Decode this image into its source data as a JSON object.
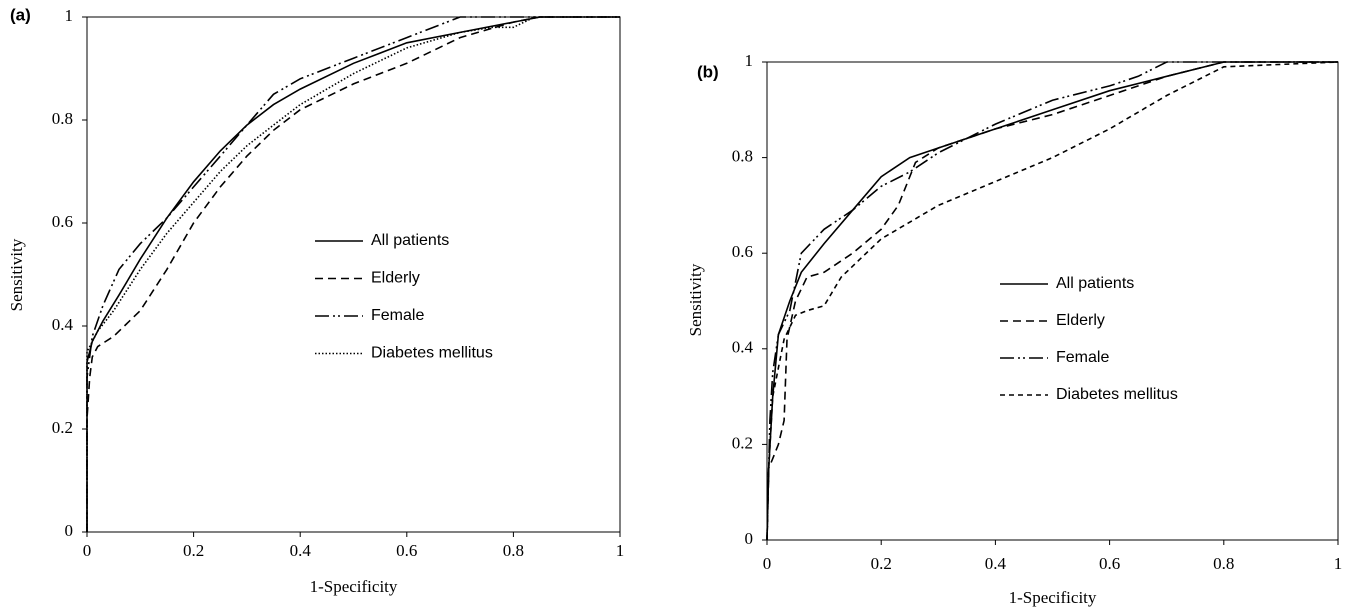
{
  "chart_data": [
    {
      "type": "line",
      "panel_label": "(a)",
      "x_label": "1-Specificity",
      "y_label": "Sensitivity",
      "xlim": [
        0,
        1
      ],
      "ylim": [
        0,
        1
      ],
      "xticks": [
        0,
        0.2,
        0.4,
        0.6,
        0.8,
        1
      ],
      "yticks": [
        0,
        0.2,
        0.4,
        0.6,
        0.8,
        1
      ],
      "legend": "center",
      "series": [
        {
          "name": "All patients",
          "color": "#000000",
          "linestyle": "solid",
          "x": [
            0,
            0,
            0.01,
            0.03,
            0.06,
            0.1,
            0.15,
            0.2,
            0.25,
            0.3,
            0.35,
            0.4,
            0.5,
            0.6,
            0.7,
            0.8,
            0.85,
            1
          ],
          "values": [
            0,
            0.33,
            0.37,
            0.41,
            0.46,
            0.53,
            0.61,
            0.68,
            0.74,
            0.79,
            0.83,
            0.86,
            0.91,
            0.95,
            0.97,
            0.99,
            1,
            1
          ]
        },
        {
          "name": "Elderly",
          "color": "#000000",
          "linestyle": "dashed",
          "x": [
            0,
            0,
            0.005,
            0.01,
            0.02,
            0.05,
            0.1,
            0.15,
            0.2,
            0.25,
            0.3,
            0.35,
            0.4,
            0.5,
            0.6,
            0.7,
            0.8,
            0.85,
            1
          ],
          "values": [
            0,
            0.22,
            0.3,
            0.34,
            0.36,
            0.38,
            0.43,
            0.51,
            0.6,
            0.67,
            0.73,
            0.78,
            0.82,
            0.87,
            0.91,
            0.96,
            0.99,
            1,
            1
          ]
        },
        {
          "name": "Female",
          "color": "#000000",
          "linestyle": "dashdotdot",
          "x": [
            0,
            0,
            0.01,
            0.03,
            0.06,
            0.1,
            0.15,
            0.2,
            0.25,
            0.3,
            0.35,
            0.4,
            0.5,
            0.6,
            0.7,
            1
          ],
          "values": [
            0,
            0.3,
            0.38,
            0.44,
            0.51,
            0.56,
            0.61,
            0.67,
            0.73,
            0.79,
            0.85,
            0.88,
            0.92,
            0.96,
            1,
            1
          ]
        },
        {
          "name": "Diabetes mellitus",
          "color": "#000000",
          "linestyle": "dotted",
          "x": [
            0,
            0,
            0.02,
            0.05,
            0.1,
            0.15,
            0.2,
            0.25,
            0.3,
            0.35,
            0.4,
            0.5,
            0.6,
            0.7,
            0.76,
            0.8,
            0.84,
            1
          ],
          "values": [
            0,
            0.35,
            0.39,
            0.43,
            0.51,
            0.58,
            0.64,
            0.7,
            0.75,
            0.79,
            0.83,
            0.89,
            0.94,
            0.97,
            0.98,
            0.98,
            1,
            1
          ]
        }
      ]
    },
    {
      "type": "line",
      "panel_label": "(b)",
      "x_label": "1-Specificity",
      "y_label": "Sensitivity",
      "xlim": [
        0,
        1
      ],
      "ylim": [
        0,
        1
      ],
      "xticks": [
        0,
        0.2,
        0.4,
        0.6,
        0.8,
        1
      ],
      "yticks": [
        0,
        0.2,
        0.4,
        0.6,
        0.8,
        1
      ],
      "legend": "center",
      "series": [
        {
          "name": "All patients",
          "color": "#000000",
          "linestyle": "solid",
          "x": [
            0,
            0.003,
            0.01,
            0.02,
            0.04,
            0.06,
            0.1,
            0.15,
            0.2,
            0.25,
            0.3,
            0.4,
            0.5,
            0.6,
            0.7,
            0.8,
            1
          ],
          "values": [
            0,
            0.15,
            0.3,
            0.43,
            0.5,
            0.56,
            0.62,
            0.69,
            0.76,
            0.8,
            0.82,
            0.86,
            0.9,
            0.94,
            0.97,
            1,
            1
          ]
        },
        {
          "name": "Elderly",
          "color": "#000000",
          "linestyle": "dashed",
          "x": [
            0,
            0.003,
            0.01,
            0.02,
            0.03,
            0.035,
            0.05,
            0.07,
            0.1,
            0.15,
            0.2,
            0.23,
            0.26,
            0.3,
            0.4,
            0.5,
            0.6,
            0.7,
            0.8,
            1
          ],
          "values": [
            0,
            0.15,
            0.17,
            0.2,
            0.25,
            0.42,
            0.5,
            0.55,
            0.56,
            0.6,
            0.65,
            0.7,
            0.79,
            0.82,
            0.86,
            0.89,
            0.93,
            0.97,
            1,
            1
          ]
        },
        {
          "name": "Female",
          "color": "#000000",
          "linestyle": "dashdotdot",
          "x": [
            0,
            0.005,
            0.01,
            0.02,
            0.04,
            0.06,
            0.1,
            0.15,
            0.2,
            0.25,
            0.3,
            0.4,
            0.5,
            0.6,
            0.65,
            0.7,
            1
          ],
          "values": [
            0,
            0.25,
            0.35,
            0.43,
            0.48,
            0.6,
            0.65,
            0.69,
            0.74,
            0.77,
            0.81,
            0.87,
            0.92,
            0.95,
            0.97,
            1,
            1
          ]
        },
        {
          "name": "Diabetes mellitus",
          "color": "#000000",
          "linestyle": "shortdash",
          "x": [
            0,
            0.003,
            0.01,
            0.03,
            0.05,
            0.07,
            0.1,
            0.13,
            0.2,
            0.3,
            0.4,
            0.5,
            0.6,
            0.7,
            0.8,
            1
          ],
          "values": [
            0,
            0.15,
            0.3,
            0.42,
            0.47,
            0.48,
            0.49,
            0.55,
            0.63,
            0.7,
            0.75,
            0.8,
            0.86,
            0.93,
            0.99,
            1
          ]
        }
      ]
    }
  ]
}
